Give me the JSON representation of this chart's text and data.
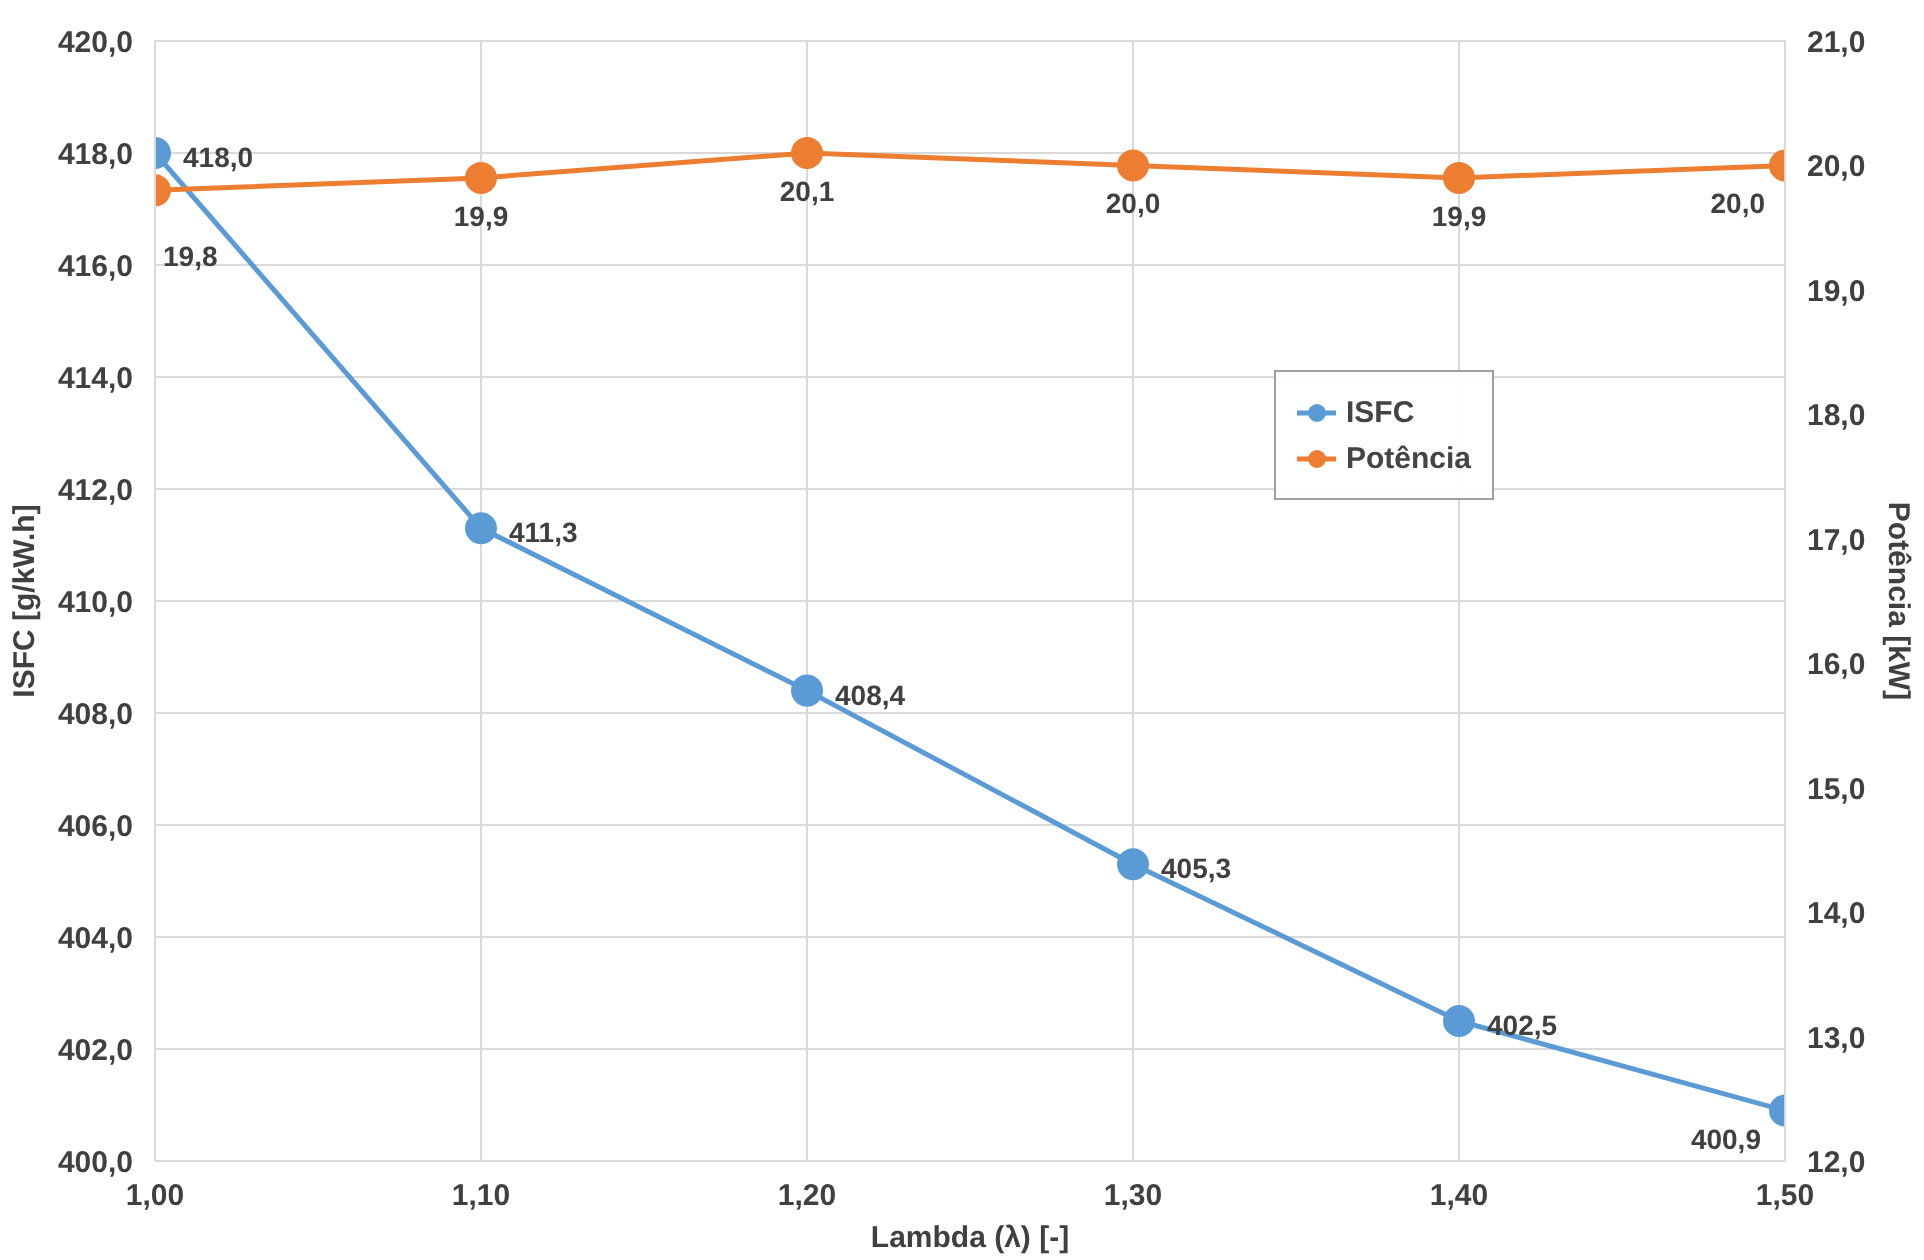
{
  "chart_data": {
    "type": "line",
    "xlabel": "Lambda (λ) [-]",
    "ylabel": "ISFC [g/kW.h]",
    "y2label": "Potência [kW]",
    "x": [
      1.0,
      1.1,
      1.2,
      1.3,
      1.4,
      1.5
    ],
    "series": [
      {
        "name": "ISFC",
        "color": "#5b9bd5",
        "values": [
          418.0,
          411.3,
          408.4,
          405.3,
          402.5,
          400.9
        ],
        "value_labels": [
          "418,0",
          "411,3",
          "408,4",
          "405,3",
          "402,5",
          "400,9"
        ]
      },
      {
        "name": "Potência",
        "color": "#ed7d31",
        "axis": "y2",
        "values": [
          19.8,
          19.9,
          20.1,
          20.0,
          19.9,
          20.0
        ],
        "value_labels": [
          "19,8",
          "19,9",
          "20,1",
          "20,0",
          "19,9",
          "20,0"
        ]
      }
    ],
    "xlim": [
      1.0,
      1.5
    ],
    "xticks": [
      {
        "value": 1.0,
        "label": "1,00"
      },
      {
        "value": 1.1,
        "label": "1,10"
      },
      {
        "value": 1.2,
        "label": "1,20"
      },
      {
        "value": 1.3,
        "label": "1,30"
      },
      {
        "value": 1.4,
        "label": "1,40"
      },
      {
        "value": 1.5,
        "label": "1,50"
      }
    ],
    "ylim": [
      400,
      420
    ],
    "yticks": [
      {
        "value": 400,
        "label": "400,0"
      },
      {
        "value": 402,
        "label": "402,0"
      },
      {
        "value": 404,
        "label": "404,0"
      },
      {
        "value": 406,
        "label": "406,0"
      },
      {
        "value": 408,
        "label": "408,0"
      },
      {
        "value": 410,
        "label": "410,0"
      },
      {
        "value": 412,
        "label": "412,0"
      },
      {
        "value": 414,
        "label": "414,0"
      },
      {
        "value": 416,
        "label": "416,0"
      },
      {
        "value": 418,
        "label": "418,0"
      },
      {
        "value": 420,
        "label": "420,0"
      }
    ],
    "y2lim": [
      12,
      21
    ],
    "y2ticks": [
      {
        "value": 12,
        "label": "12,0"
      },
      {
        "value": 13,
        "label": "13,0"
      },
      {
        "value": 14,
        "label": "14,0"
      },
      {
        "value": 15,
        "label": "15,0"
      },
      {
        "value": 16,
        "label": "16,0"
      },
      {
        "value": 17,
        "label": "17,0"
      },
      {
        "value": 18,
        "label": "18,0"
      },
      {
        "value": 19,
        "label": "19,0"
      },
      {
        "value": 20,
        "label": "20,0"
      },
      {
        "value": 21,
        "label": "21,0"
      }
    ],
    "grid": true,
    "legend": "top right",
    "marker": "circle",
    "line_style": "solid"
  }
}
